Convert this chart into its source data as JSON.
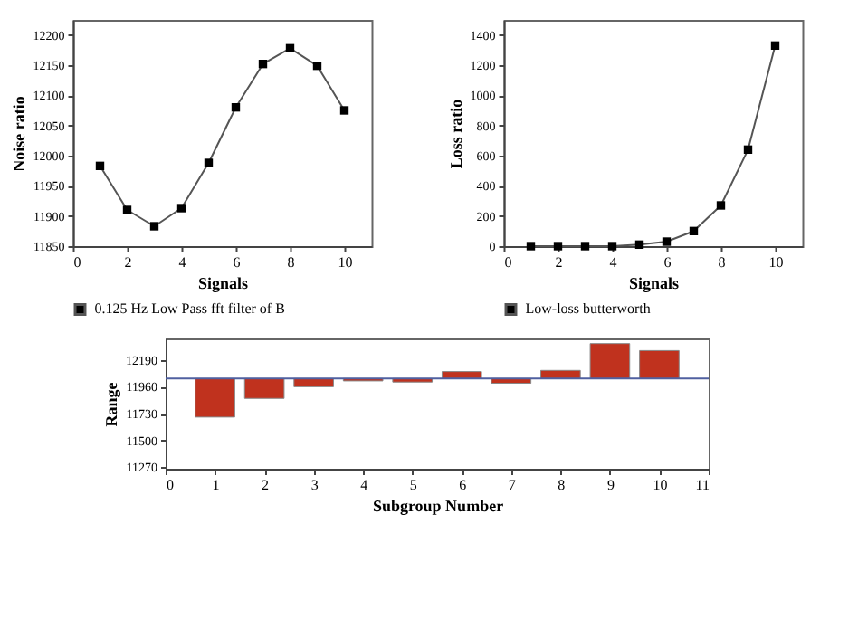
{
  "chart_data": [
    {
      "type": "line",
      "xlabel": "Signals",
      "ylabel": "Noise ratio",
      "x": [
        1,
        2,
        3,
        4,
        5,
        6,
        7,
        8,
        9,
        10
      ],
      "xlim": [
        0,
        11
      ],
      "xticks": [
        0,
        2,
        4,
        6,
        8,
        10
      ],
      "ylim": [
        11850,
        12225
      ],
      "yticks": [
        11850,
        11900,
        11950,
        12000,
        12050,
        12100,
        12150,
        12200
      ],
      "marker": "square",
      "grid": false,
      "legend": "bottom",
      "series": [
        {
          "name": "0.125 Hz Low Pass fft filter of B",
          "color": "#555555",
          "values": [
            11983,
            11910,
            11883,
            11913,
            11988,
            12080,
            12152,
            12178,
            12149,
            12075
          ]
        }
      ]
    },
    {
      "type": "line",
      "xlabel": "Signals",
      "ylabel": "Loss ratio",
      "x": [
        1,
        2,
        3,
        4,
        5,
        6,
        7,
        8,
        9,
        10
      ],
      "xlim": [
        0,
        11
      ],
      "xticks": [
        0,
        2,
        4,
        6,
        8,
        10
      ],
      "ylim": [
        0,
        1500
      ],
      "yticks": [
        0,
        200,
        400,
        600,
        800,
        1000,
        1200,
        1400
      ],
      "marker": "square",
      "grid": false,
      "legend": "bottom",
      "series": [
        {
          "name": "Low-loss butterworth",
          "color": "#555555",
          "values": [
            0,
            0,
            0,
            0,
            10,
            30,
            100,
            270,
            640,
            1330
          ]
        }
      ]
    },
    {
      "type": "bar",
      "xlabel": "Subgroup Number",
      "ylabel": "Range",
      "x": [
        1,
        2,
        3,
        4,
        5,
        6,
        7,
        8,
        9,
        10
      ],
      "xlim": [
        0,
        11
      ],
      "xticks": [
        0,
        1,
        2,
        3,
        4,
        5,
        6,
        7,
        8,
        9,
        10,
        11
      ],
      "ylim": [
        11257,
        12374
      ],
      "yticks": [
        11270,
        11500,
        11730,
        11960,
        12190
      ],
      "grid": false,
      "base": [
        12030,
        12030,
        12030,
        12030,
        12030,
        12030,
        12030,
        12030,
        12030,
        12030
      ],
      "values": [
        -330,
        -170,
        -70,
        -20,
        -30,
        60,
        -40,
        70,
        300,
        240
      ],
      "color": "#c0321e",
      "ref_lines": [
        {
          "axis": "y",
          "value": 12030,
          "color": "#5060a0"
        }
      ]
    }
  ]
}
